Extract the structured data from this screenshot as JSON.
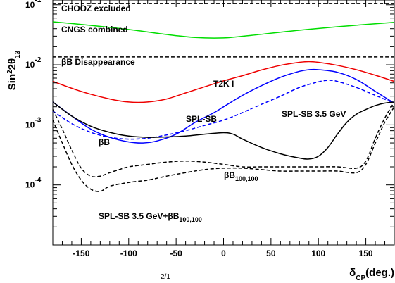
{
  "chart_data": {
    "type": "line",
    "title": "",
    "xlabel": "δ_CP(deg.)",
    "ylabel": "Sin^2 2θ_13",
    "xlim": [
      -180,
      180
    ],
    "ylim": [
      1e-05,
      0.12
    ],
    "yscale": "log",
    "grid": false,
    "x_ticks": [
      -150,
      -100,
      -50,
      0,
      50,
      100,
      150
    ],
    "y_ticks": [
      {
        "value": 0.1,
        "mant": "10",
        "exp": "-1"
      },
      {
        "value": 0.01,
        "mant": "10",
        "exp": "-2"
      },
      {
        "value": 0.001,
        "mant": "10",
        "exp": "-3"
      },
      {
        "value": 0.0001,
        "mant": "10",
        "exp": "-4"
      }
    ],
    "series": [
      {
        "key": "chooz",
        "color": "#000000",
        "dash": "dashed",
        "x": [
          -180,
          180
        ],
        "y": [
          0.105,
          0.105
        ]
      },
      {
        "key": "bbdis",
        "color": "#000000",
        "dash": "dashed",
        "x": [
          -180,
          180
        ],
        "y": [
          0.0135,
          0.0135
        ]
      },
      {
        "key": "cngs",
        "color": "#00dd00",
        "dash": "solid",
        "x": [
          -180,
          -150,
          -120,
          -90,
          -60,
          -30,
          0,
          30,
          60,
          90,
          120,
          150,
          180
        ],
        "y": [
          0.052,
          0.047,
          0.042,
          0.037,
          0.032,
          0.0285,
          0.028,
          0.031,
          0.035,
          0.039,
          0.043,
          0.047,
          0.051
        ]
      },
      {
        "key": "t2k",
        "color": "#ee0000",
        "dash": "solid",
        "x": [
          -180,
          -150,
          -120,
          -100,
          -80,
          -60,
          -40,
          -20,
          0,
          20,
          40,
          60,
          80,
          90,
          100,
          120,
          140,
          160,
          180
        ],
        "y": [
          0.0053,
          0.0036,
          0.0027,
          0.0024,
          0.0024,
          0.0027,
          0.0034,
          0.0043,
          0.0054,
          0.0066,
          0.0082,
          0.0098,
          0.011,
          0.0113,
          0.011,
          0.0098,
          0.0083,
          0.0067,
          0.0053
        ]
      },
      {
        "key": "splsb",
        "color": "#0000ff",
        "dash": "solid",
        "x": [
          -180,
          -160,
          -140,
          -120,
          -100,
          -85,
          -70,
          -50,
          -30,
          -10,
          0,
          20,
          40,
          60,
          80,
          90,
          100,
          120,
          140,
          160,
          180
        ],
        "y": [
          0.0024,
          0.0014,
          0.00085,
          0.00062,
          0.00052,
          0.0005,
          0.00054,
          0.0007,
          0.0011,
          0.0016,
          0.002,
          0.0031,
          0.0045,
          0.0062,
          0.0078,
          0.0083,
          0.0083,
          0.0075,
          0.0057,
          0.0036,
          0.0023
        ]
      },
      {
        "key": "splsb35",
        "color": "#0000ff",
        "dash": "dashed",
        "x": [
          -180,
          -160,
          -140,
          -120,
          -100,
          -80,
          -60,
          -40,
          -20,
          0,
          20,
          40,
          60,
          80,
          100,
          110,
          120,
          140,
          160,
          180
        ],
        "y": [
          0.0017,
          0.00105,
          0.00075,
          0.00062,
          0.00058,
          0.0006,
          0.00068,
          0.0008,
          0.00098,
          0.0012,
          0.0016,
          0.0022,
          0.003,
          0.0042,
          0.0052,
          0.0055,
          0.0053,
          0.0042,
          0.0031,
          0.0023
        ]
      },
      {
        "key": "bb",
        "color": "#000000",
        "dash": "solid",
        "x": [
          -180,
          -160,
          -140,
          -120,
          -100,
          -80,
          -60,
          -40,
          -20,
          0,
          10,
          20,
          40,
          60,
          80,
          90,
          100,
          110,
          120,
          130,
          140,
          150,
          160,
          170,
          180
        ],
        "y": [
          0.0024,
          0.0014,
          0.00095,
          0.00075,
          0.00065,
          0.00062,
          0.00063,
          0.00065,
          0.0007,
          0.00074,
          0.0007,
          0.00058,
          0.00042,
          0.00033,
          0.00028,
          0.00027,
          0.0003,
          0.00042,
          0.0007,
          0.0011,
          0.0015,
          0.0018,
          0.0021,
          0.0023,
          0.0024
        ]
      },
      {
        "key": "bb100",
        "color": "#000000",
        "dash": "dashed",
        "x": [
          -180,
          -170,
          -160,
          -150,
          -140,
          -130,
          -120,
          -110,
          -100,
          -80,
          -60,
          -40,
          -20,
          0,
          20,
          40,
          60,
          80,
          100,
          120,
          140,
          150,
          160,
          170,
          180
        ],
        "y": [
          0.0018,
          0.00085,
          0.00038,
          0.00019,
          0.00014,
          0.00014,
          0.00016,
          0.00018,
          0.0002,
          0.00022,
          0.00024,
          0.00025,
          0.00024,
          0.00022,
          0.0002,
          0.0002,
          0.0002,
          0.0002,
          0.0002,
          0.0002,
          0.00019,
          0.00025,
          0.0006,
          0.0013,
          0.0024
        ]
      },
      {
        "key": "combo",
        "color": "#000000",
        "dash": "dashed",
        "x": [
          -180,
          -170,
          -160,
          -150,
          -140,
          -130,
          -120,
          -100,
          -80,
          -60,
          -40,
          -20,
          0,
          20,
          40,
          60,
          80,
          100,
          120,
          140,
          150,
          160,
          170,
          180
        ],
        "y": [
          0.0012,
          0.0005,
          0.00022,
          0.00012,
          8.5e-05,
          7.8e-05,
          9.5e-05,
          0.00011,
          0.00012,
          0.00014,
          0.00016,
          0.00018,
          0.00019,
          0.00019,
          0.00018,
          0.00017,
          0.00017,
          0.00017,
          0.00017,
          0.00016,
          0.00022,
          0.0005,
          0.0011,
          0.002
        ]
      }
    ],
    "annotations": [
      {
        "key": "chooz",
        "text": "CHOOZ excluded"
      },
      {
        "key": "cngs",
        "text": "CNGS combined"
      },
      {
        "key": "bbdis",
        "text": "βB Disappearance"
      },
      {
        "key": "t2k",
        "text": "T2K I"
      },
      {
        "key": "splsb",
        "text": "SPL-SB"
      },
      {
        "key": "splsb35",
        "text": "SPL-SB 3.5 GeV"
      },
      {
        "key": "bb",
        "text": "βB"
      },
      {
        "key": "bb100",
        "text": "βB",
        "sub": "100,100"
      },
      {
        "key": "combo",
        "text": "SPL-SB 3.5 GeV+βB",
        "sub": "100,100"
      }
    ],
    "footer_fragment": "2/1"
  }
}
